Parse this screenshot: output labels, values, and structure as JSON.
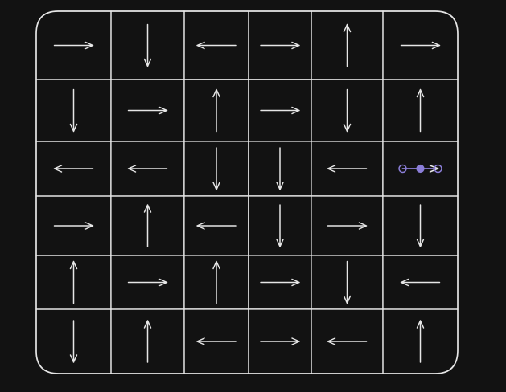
{
  "canvas": {
    "background": "#121212",
    "stroke_color": "#e6e6e6",
    "selection_color": "#8b7ed8"
  },
  "grid": {
    "rows": 6,
    "columns": 6,
    "cells": [
      [
        "right",
        "down",
        "left",
        "right",
        "up",
        "right"
      ],
      [
        "down",
        "right",
        "up",
        "right",
        "down",
        "up"
      ],
      [
        "left",
        "left",
        "down",
        "down",
        "left",
        "selected-right"
      ],
      [
        "right",
        "up",
        "left",
        "down",
        "right",
        "down"
      ],
      [
        "up",
        "right",
        "up",
        "right",
        "down",
        "left"
      ],
      [
        "down",
        "up",
        "left",
        "right",
        "left",
        "up"
      ]
    ]
  },
  "selected_element": {
    "row": 3,
    "column": 6,
    "kind": "arrow",
    "direction": "right"
  },
  "icons": {
    "arrow": "arrow-icon",
    "handle": "resize-handle-icon"
  }
}
